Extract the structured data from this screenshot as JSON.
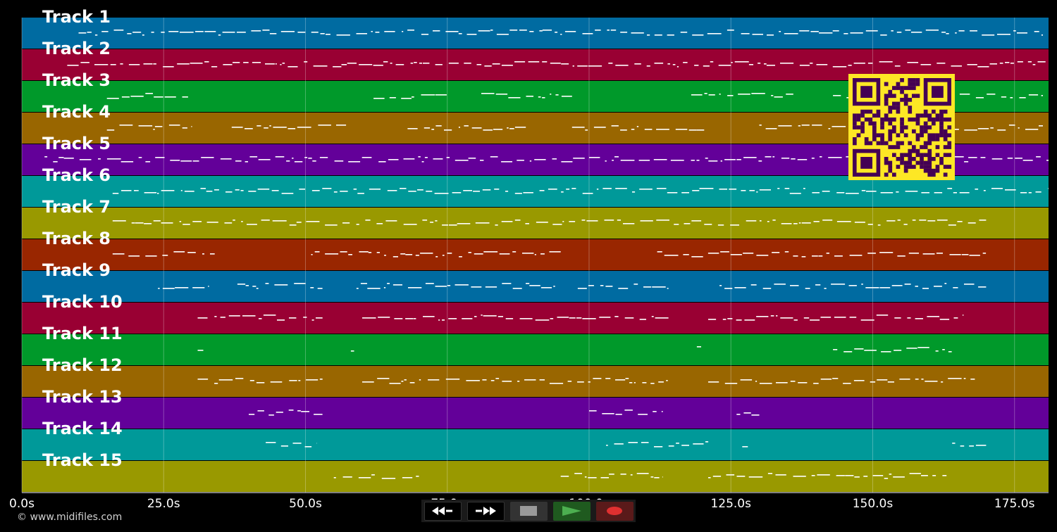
{
  "tracks": [
    {
      "label": "Track 1",
      "color": "#006ba1"
    },
    {
      "label": "Track 2",
      "color": "#990033"
    },
    {
      "label": "Track 3",
      "color": "#00992a"
    },
    {
      "label": "Track 4",
      "color": "#996600"
    },
    {
      "label": "Track 5",
      "color": "#630099"
    },
    {
      "label": "Track 6",
      "color": "#009999"
    },
    {
      "label": "Track 7",
      "color": "#999900"
    },
    {
      "label": "Track 8",
      "color": "#992600"
    },
    {
      "label": "Track 9",
      "color": "#006ba1"
    },
    {
      "label": "Track 10",
      "color": "#990033"
    },
    {
      "label": "Track 11",
      "color": "#00992a"
    },
    {
      "label": "Track 12",
      "color": "#996600"
    },
    {
      "label": "Track 13",
      "color": "#630099"
    },
    {
      "label": "Track 14",
      "color": "#009999"
    },
    {
      "label": "Track 15",
      "color": "#999900"
    }
  ],
  "time_axis": {
    "max_seconds": 181,
    "ticks": [
      {
        "value": 0,
        "label": "0.0s"
      },
      {
        "value": 25,
        "label": "25.0s"
      },
      {
        "value": 50,
        "label": "50.0s"
      },
      {
        "value": 75,
        "label": "75.0s"
      },
      {
        "value": 100,
        "label": "100.0s"
      },
      {
        "value": 125,
        "label": "125.0s"
      },
      {
        "value": 150,
        "label": "150.0s"
      },
      {
        "value": 175,
        "label": "175.0s"
      }
    ]
  },
  "transport": {
    "rewind": "rewind-icon",
    "fast_forward": "fast-forward-icon",
    "stop": "stop-icon",
    "play": "play-icon",
    "record": "record-icon",
    "play_color": "#4caf50",
    "record_color": "#e03030"
  },
  "footer": {
    "copyright": "© www.midifiles.com"
  },
  "qr_colors": {
    "fg": "#440154",
    "bg": "#fde725"
  },
  "note_color": "#ffffff",
  "activity": [
    [
      [
        10,
        180
      ]
    ],
    [
      [
        8,
        181
      ]
    ],
    [
      [
        15,
        30
      ],
      [
        62,
        75
      ],
      [
        81,
        97
      ],
      [
        118,
        136
      ],
      [
        143,
        180
      ]
    ],
    [
      [
        15,
        30
      ],
      [
        37,
        58
      ],
      [
        68,
        90
      ],
      [
        97,
        121
      ],
      [
        130,
        180
      ]
    ],
    [
      [
        4,
        181
      ]
    ],
    [
      [
        16,
        181
      ]
    ],
    [
      [
        16,
        170
      ]
    ],
    [
      [
        16,
        34
      ],
      [
        51,
        95
      ],
      [
        112,
        170
      ]
    ],
    [
      [
        24,
        33
      ],
      [
        38,
        53
      ],
      [
        59,
        94
      ],
      [
        98,
        114
      ],
      [
        123,
        170
      ]
    ],
    [
      [
        31,
        53
      ],
      [
        60,
        114
      ],
      [
        121,
        166
      ]
    ],
    [
      [
        31,
        32
      ],
      [
        58,
        59
      ],
      [
        119,
        120
      ],
      [
        143,
        164
      ]
    ],
    [
      [
        31,
        53
      ],
      [
        60,
        114
      ],
      [
        121,
        168
      ]
    ],
    [
      [
        40,
        53
      ],
      [
        100,
        113
      ],
      [
        126,
        130
      ]
    ],
    [
      [
        43,
        52
      ],
      [
        103,
        121
      ],
      [
        127,
        128
      ],
      [
        164,
        170
      ]
    ],
    [
      [
        55,
        70
      ],
      [
        95,
        113
      ],
      [
        121,
        163
      ]
    ]
  ]
}
